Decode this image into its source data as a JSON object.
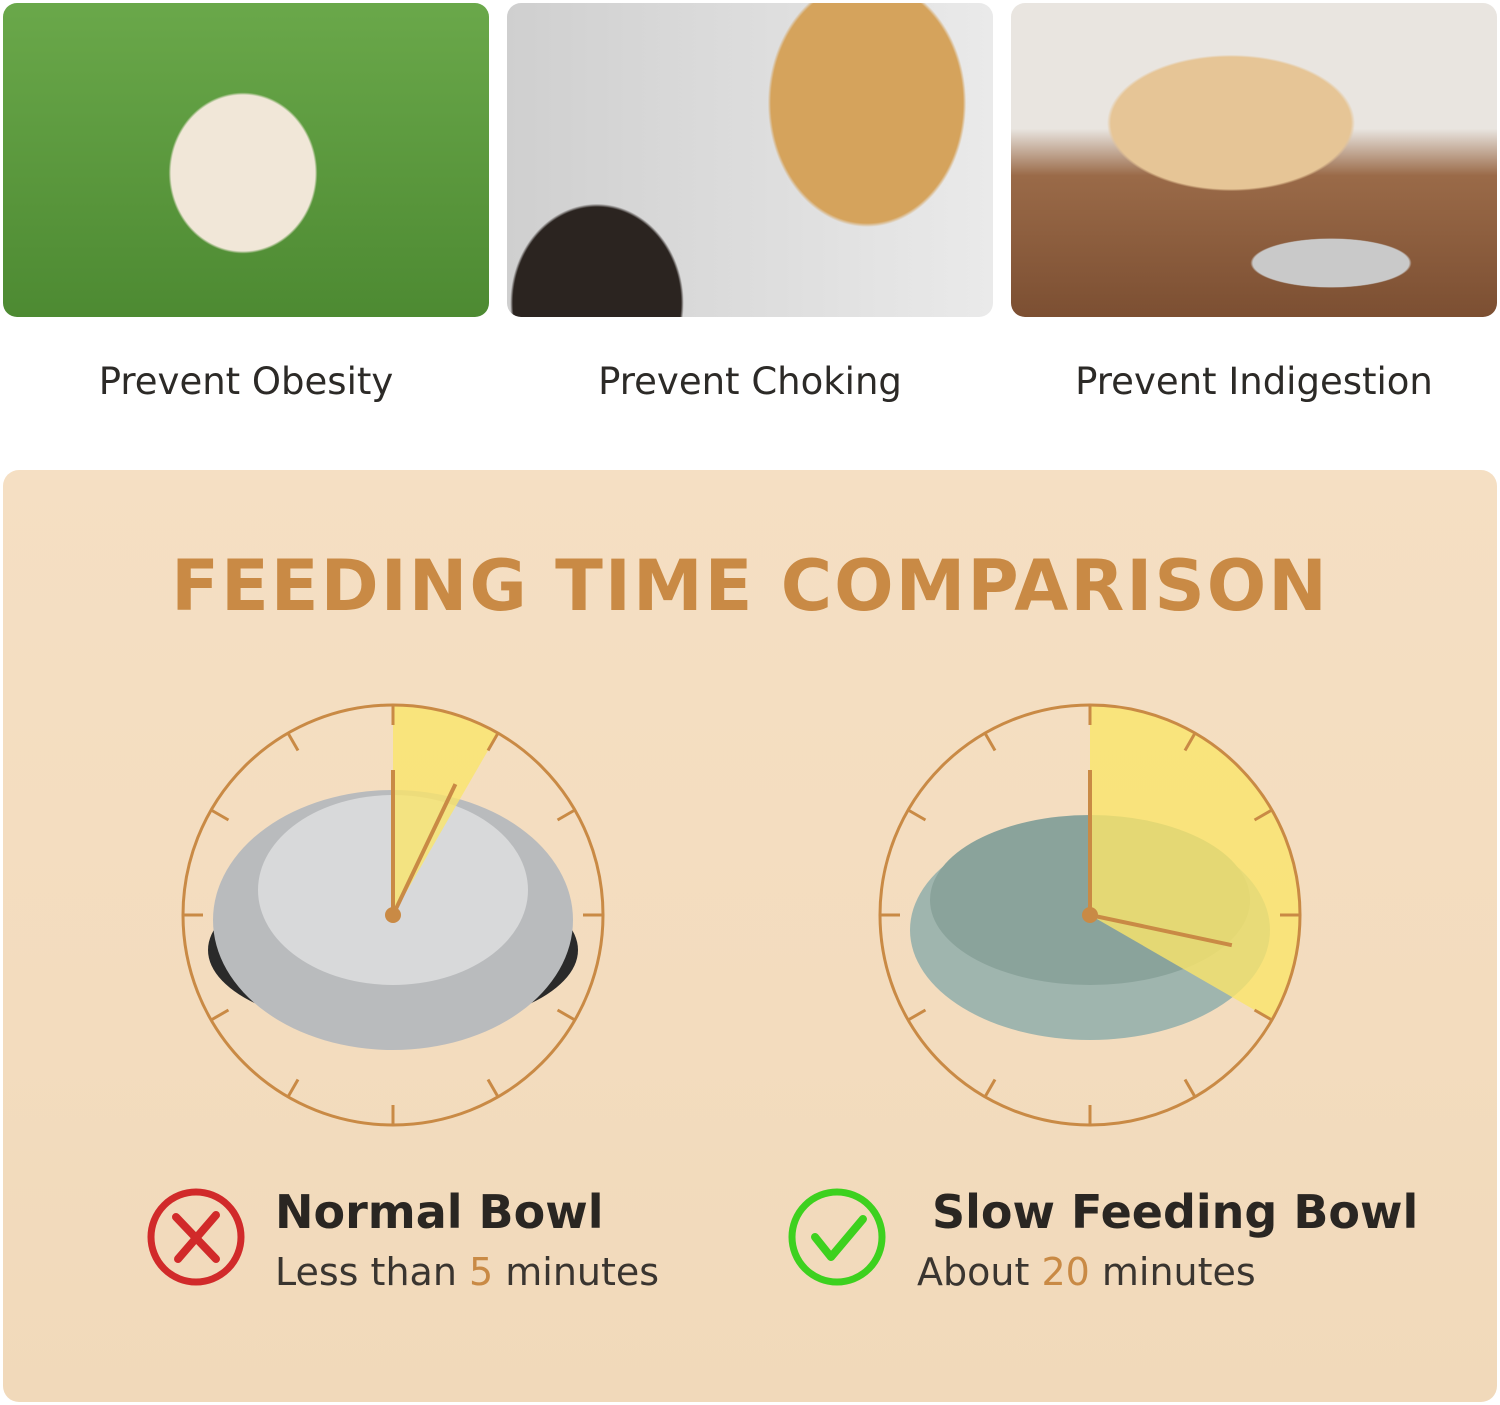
{
  "benefits": [
    {
      "label": "Prevent Obesity"
    },
    {
      "label": "Prevent Choking"
    },
    {
      "label": "Prevent Indigestion"
    }
  ],
  "comparison": {
    "title": "FEEDING TIME COMPARISON",
    "accent_color": "#c98a45",
    "highlight_color": "#fae56a",
    "items": [
      {
        "name": "Normal Bowl",
        "prefix": "Less than ",
        "minutes": "5",
        "suffix": " minutes",
        "minutes_value": 5,
        "icon": "x-circle-icon",
        "icon_color": "#d12a2a"
      },
      {
        "name": "Slow Feeding Bowl",
        "prefix": "About ",
        "minutes": "20",
        "suffix": " minutes",
        "minutes_value": 20,
        "icon": "check-circle-icon",
        "icon_color": "#3dd11f"
      }
    ]
  }
}
